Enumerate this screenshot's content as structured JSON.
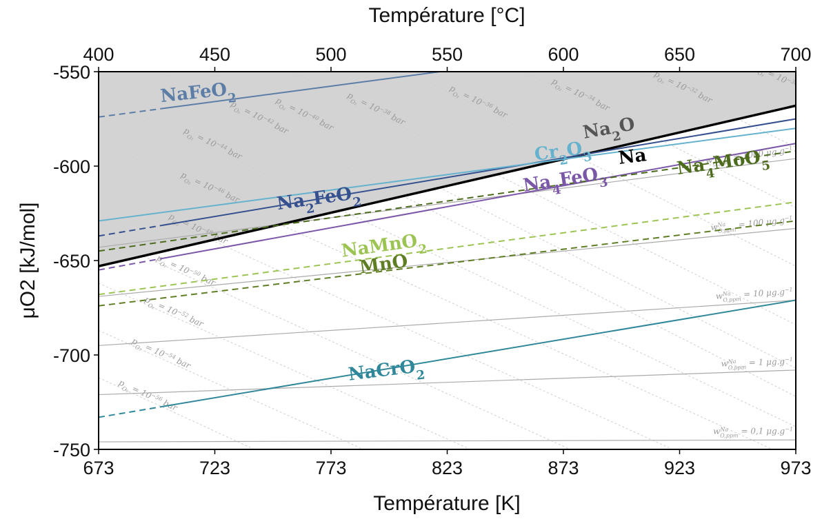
{
  "chart_data": {
    "type": "line",
    "x_range": [
      673,
      973
    ],
    "y_range": [
      -750,
      -550
    ],
    "x_ticks": [
      "673",
      "723",
      "773",
      "823",
      "873",
      "923",
      "973"
    ],
    "x_top_ticks": [
      "400",
      "450",
      "500",
      "550",
      "600",
      "650",
      "700"
    ],
    "y_ticks": [
      "-550",
      "-600",
      "-650",
      "-700",
      "-750"
    ],
    "y_tick_values": [
      -550,
      -600,
      -650,
      -700,
      -750
    ],
    "xlabel_bottom": "Température [K]",
    "xlabel_top": "Température [°C]",
    "ylabel": "μO2 [kJ/mol]",
    "grid": false,
    "shaded_region": {
      "above_line": "Na2O",
      "color": "#d3d3d3"
    },
    "colors": {
      "Na2O": "#000000",
      "NaFeO2": "#5b7da6",
      "Na2FeO2": "#35508f",
      "Cr2O3": "#64b2cd",
      "Na4FeO3": "#7b57a8",
      "Na4MoO5": "#4c6b1d",
      "NaMnO2": "#9cc453",
      "MnO": "#5f7e24",
      "NaCrO2": "#2f8799",
      "oxygen_isolines": "#aaaaaa",
      "po2_isolines": "#cfcfcf"
    },
    "series": [
      {
        "key": "Na2O",
        "dashed_until": null,
        "points": [
          [
            673,
            -653
          ],
          [
            973,
            -568
          ]
        ]
      },
      {
        "key": "NaFeO2",
        "dashed_until": 700,
        "points": [
          [
            673,
            -574
          ],
          [
            973,
            -525
          ]
        ]
      },
      {
        "key": "Na2FeO2",
        "dashed_until": 700,
        "points": [
          [
            673,
            -637
          ],
          [
            973,
            -575
          ]
        ]
      },
      {
        "key": "Cr2O3",
        "dashed_until": null,
        "points": [
          [
            673,
            -629
          ],
          [
            973,
            -580
          ]
        ]
      },
      {
        "key": "Na4FeO3",
        "dashed_until": 700,
        "points": [
          [
            673,
            -655
          ],
          [
            973,
            -588
          ]
        ]
      },
      {
        "key": "Na4MoO5",
        "dashed_until": 973,
        "points": [
          [
            673,
            -645
          ],
          [
            973,
            -592
          ]
        ]
      },
      {
        "key": "NaMnO2",
        "dashed_until": 973,
        "points": [
          [
            673,
            -668
          ],
          [
            973,
            -619
          ]
        ]
      },
      {
        "key": "MnO",
        "dashed_until": 973,
        "points": [
          [
            673,
            -674
          ],
          [
            973,
            -629
          ]
        ]
      },
      {
        "key": "NaCrO2",
        "dashed_until": 700,
        "points": [
          [
            673,
            -733
          ],
          [
            973,
            -671
          ]
        ]
      }
    ],
    "oxygen_isolines": [
      {
        "points": [
          [
            673,
            -643
          ],
          [
            973,
            -596
          ]
        ],
        "label_main": "w",
        "label_sup": "Na",
        "label_sub": "O,ppm",
        "label_rest": " = 1000 μg.g",
        "label_exp": "−1"
      },
      {
        "points": [
          [
            673,
            -669
          ],
          [
            973,
            -633
          ]
        ],
        "label_main": "w",
        "label_sup": "Na",
        "label_sub": "O,ppm",
        "label_rest": " = 100 μg.g",
        "label_exp": "−1"
      },
      {
        "points": [
          [
            673,
            -695
          ],
          [
            973,
            -671
          ]
        ],
        "label_main": "w",
        "label_sup": "Na",
        "label_sub": "O,ppm",
        "label_rest": " = 10 μg.g",
        "label_exp": "−1"
      },
      {
        "points": [
          [
            673,
            -721
          ],
          [
            973,
            -708
          ]
        ],
        "label_main": "w",
        "label_sup": "Na",
        "label_sub": "O,ppm",
        "label_rest": " = 1 μg.g",
        "label_exp": "−1"
      },
      {
        "points": [
          [
            673,
            -746
          ],
          [
            973,
            -745
          ]
        ],
        "label_main": "w",
        "label_sup": "Na",
        "label_sub": "O,ppm",
        "label_rest": " = 0,1 μg.g",
        "label_exp": "−1"
      }
    ],
    "po2_isolines": [
      {
        "exp": "−30",
        "points": [
          [
            952,
            -548
          ],
          [
            973,
            -560
          ]
        ]
      },
      {
        "exp": "−32",
        "points": [
          [
            903,
            -548
          ],
          [
            973,
            -590
          ]
        ]
      },
      {
        "exp": "−34",
        "points": [
          [
            853,
            -548
          ],
          [
            973,
            -622
          ]
        ]
      },
      {
        "exp": "−36",
        "points": [
          [
            803,
            -548
          ],
          [
            973,
            -653
          ]
        ]
      },
      {
        "exp": "−38",
        "points": [
          [
            753,
            -548
          ],
          [
            973,
            -684
          ]
        ]
      },
      {
        "exp": "−40",
        "points": [
          [
            718,
            -548
          ],
          [
            973,
            -707
          ]
        ]
      },
      {
        "exp": "−42",
        "points": [
          [
            696,
            -548
          ],
          [
            973,
            -722
          ]
        ]
      },
      {
        "exp": "−44",
        "points": [
          [
            673,
            -562
          ],
          [
            973,
            -738
          ]
        ]
      },
      {
        "exp": "−46",
        "points": [
          [
            673,
            -587
          ],
          [
            963,
            -750
          ]
        ]
      },
      {
        "exp": "−48",
        "points": [
          [
            673,
            -612
          ],
          [
            920,
            -750
          ]
        ]
      },
      {
        "exp": "−50",
        "points": [
          [
            673,
            -637
          ],
          [
            876,
            -750
          ]
        ]
      },
      {
        "exp": "−52",
        "points": [
          [
            673,
            -662
          ],
          [
            833,
            -750
          ]
        ]
      },
      {
        "exp": "−54",
        "points": [
          [
            673,
            -687
          ],
          [
            787,
            -750
          ]
        ]
      },
      {
        "exp": "−56",
        "points": [
          [
            673,
            -712
          ],
          [
            740,
            -750
          ]
        ]
      }
    ],
    "po2_label_parts": {
      "main": "p",
      "sub": "O₂",
      "rest": " = 10",
      "unit": " bar"
    },
    "labels": [
      {
        "key": "NaFeO2",
        "main": "NaFeO",
        "sub": "2",
        "x": 716,
        "y": -564,
        "angle": -6
      },
      {
        "key": "Na2O",
        "main": "Na",
        "sub": "2",
        "tail": "O",
        "x": 893,
        "y": -583,
        "angle": -10,
        "color": "#555555"
      },
      {
        "key": "Cr2O3",
        "main": "Cr",
        "sub": "2",
        "tail": "O",
        "sub2": "3",
        "x": 873,
        "y": -595,
        "angle": -8
      },
      {
        "key": "Na",
        "main": "Na",
        "x": 903,
        "y": -598,
        "angle": -7,
        "color": "#000000"
      },
      {
        "key": "Na4MoO5",
        "main": "Na",
        "sub": "4",
        "tail": "MoO",
        "sub2": "5",
        "x": 942,
        "y": -601,
        "angle": -8
      },
      {
        "key": "Na4FeO3",
        "main": "Na",
        "sub": "4",
        "tail": "FeO",
        "sub2": "3",
        "x": 874,
        "y": -610,
        "angle": -9
      },
      {
        "key": "Na2FeO2",
        "main": "Na",
        "sub": "2",
        "tail": "FeO",
        "sub2": "2",
        "x": 768,
        "y": -620,
        "angle": -8
      },
      {
        "key": "NaMnO2",
        "main": "NaMnO",
        "sub": "2",
        "x": 796,
        "y": -645,
        "angle": -8
      },
      {
        "key": "MnO",
        "main": "MnO",
        "x": 796,
        "y": -655,
        "angle": -8
      },
      {
        "key": "NaCrO2",
        "main": "NaCrO",
        "sub": "2",
        "x": 797,
        "y": -711,
        "angle": -7
      }
    ]
  }
}
